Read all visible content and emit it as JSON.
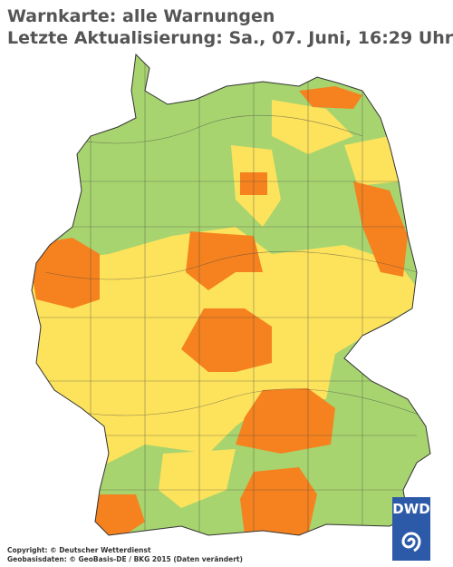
{
  "header": {
    "title": "Warnkarte: alle Warnungen",
    "subtitle": "Letzte Aktualisierung: Sa., 07. Juni, 16:29 Uhr"
  },
  "footer": {
    "copyright": "Copyright: © Deutscher Wetterdienst",
    "geodata": "Geobasisdaten: © GeoBasis-DE / BKG 2015 (Daten verändert)"
  },
  "logo": {
    "text": "DWD"
  }
}
